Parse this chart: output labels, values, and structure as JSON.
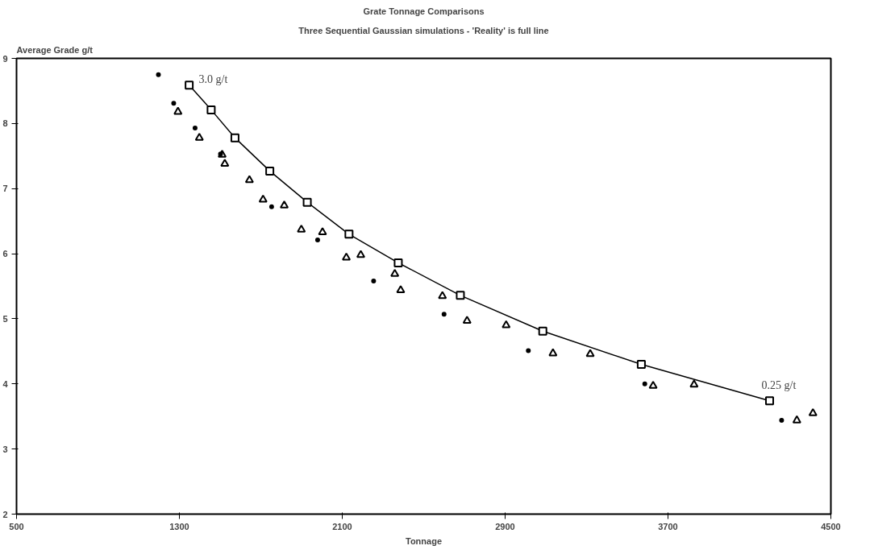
{
  "chart_data": {
    "type": "scatter",
    "title": "Grate Tonnage Comparisons",
    "subtitle": "Three Sequential Gaussian simulations - 'Reality' is full line",
    "xlabel": "Tonnage",
    "ylabel": "Average Grade g/t",
    "series": [
      {
        "type": "line",
        "marker": "square",
        "color": "#000000",
        "x": [
          1348,
          1456,
          1573,
          1744,
          1928,
          2133,
          2375,
          2680,
          3085,
          3569,
          4199
        ],
        "values": [
          8.59,
          8.21,
          7.78,
          7.27,
          6.79,
          6.3,
          5.86,
          5.36,
          4.81,
          4.3,
          3.74
        ]
      },
      {
        "marker": "triangle",
        "color": "#000000",
        "x": [
          1293,
          1398,
          1523,
          1711,
          1899,
          2120,
          2387,
          2713,
          3135,
          3627,
          4333
        ],
        "values": [
          8.18,
          7.78,
          7.38,
          6.83,
          6.37,
          5.94,
          5.44,
          4.97,
          4.47,
          3.97,
          3.44
        ]
      },
      {
        "marker": "triangle",
        "color": "#000000",
        "x": [
          1510,
          1644,
          1815,
          2003,
          2191,
          2358,
          2592,
          2905,
          3318,
          3828,
          4412
        ],
        "values": [
          7.52,
          7.13,
          6.74,
          6.33,
          5.98,
          5.69,
          5.35,
          4.9,
          4.46,
          3.99,
          3.55
        ]
      },
      {
        "marker": "circle",
        "color": "#000000",
        "x": [
          1197,
          1272,
          1377,
          1502,
          1753,
          1979,
          2254,
          2600,
          3014,
          3586,
          4258
        ],
        "values": [
          8.75,
          8.31,
          7.93,
          7.53,
          6.72,
          6.21,
          5.58,
          5.07,
          4.51,
          4.0,
          3.44
        ]
      }
    ],
    "annotations": [
      {
        "text": "3.0 g/t",
        "x": 1348,
        "y": 8.59
      },
      {
        "text": "0.25 g/t",
        "x": 4199,
        "y": 3.74
      }
    ],
    "xlim": [
      500,
      4500
    ],
    "xticks": [
      500,
      1300,
      2100,
      2900,
      3700,
      4500
    ],
    "ylim": [
      2,
      9
    ],
    "yticks": [
      2,
      3,
      4,
      5,
      6,
      7,
      8,
      9
    ],
    "grid": false
  }
}
